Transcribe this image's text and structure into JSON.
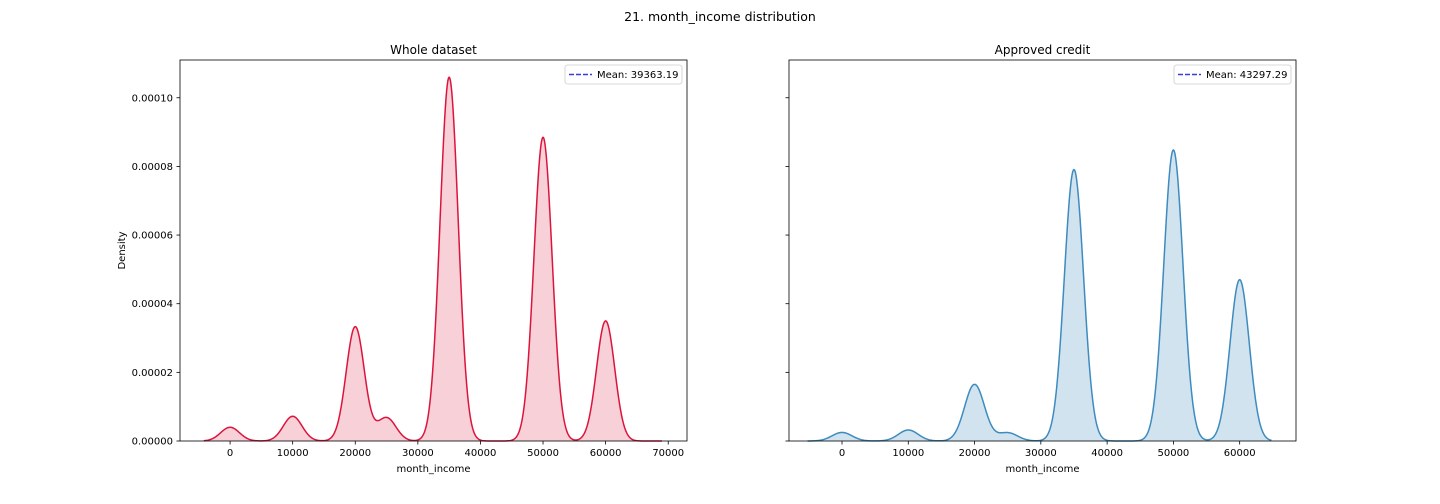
{
  "figure": {
    "suptitle": "21. month_income distribution"
  },
  "chart_data": [
    {
      "type": "area",
      "title": "Whole dataset",
      "xlabel": "month_income",
      "ylabel": "Density",
      "xlim": [
        -8000,
        73000
      ],
      "ylim": [
        0,
        0.000111
      ],
      "xticks": [
        0,
        10000,
        20000,
        30000,
        40000,
        50000,
        60000,
        70000
      ],
      "yticks": [
        0,
        2e-05,
        4e-05,
        6e-05,
        8e-05,
        0.0001
      ],
      "ytick_labels": [
        "0.00000",
        "0.00002",
        "0.00004",
        "0.00006",
        "0.00008",
        "0.00010"
      ],
      "grid": false,
      "line_color": "#dc143c",
      "fill_color": "#f7d0d8",
      "kde_range": [
        -4200,
        69000
      ],
      "components": [
        {
          "mu": 0,
          "sigma": 1500,
          "peak": 4e-06
        },
        {
          "mu": 10000,
          "sigma": 1500,
          "peak": 7.2e-06
        },
        {
          "mu": 20000,
          "sigma": 1450,
          "peak": 3.33e-05
        },
        {
          "mu": 25000,
          "sigma": 1500,
          "peak": 6.8e-06
        },
        {
          "mu": 35000,
          "sigma": 1450,
          "peak": 0.000106
        },
        {
          "mu": 50000,
          "sigma": 1450,
          "peak": 8.85e-05
        },
        {
          "mu": 60000,
          "sigma": 1450,
          "peak": 3.5e-05
        }
      ],
      "legend": {
        "label": "Mean: 39363.19",
        "line_color": "#3b3bdb",
        "position": "upper right"
      }
    },
    {
      "type": "area",
      "title": "Approved credit",
      "xlabel": "month_income",
      "ylabel": "",
      "xlim": [
        -8000,
        68500
      ],
      "ylim": [
        0,
        0.000111
      ],
      "xticks": [
        0,
        10000,
        20000,
        30000,
        40000,
        50000,
        60000
      ],
      "yticks": [
        0,
        2e-05,
        4e-05,
        6e-05,
        8e-05,
        0.0001
      ],
      "ytick_labels": [],
      "grid": false,
      "line_color": "#3d8bbf",
      "fill_color": "#d1e3ef",
      "kde_range": [
        -5200,
        64800
      ],
      "components": [
        {
          "mu": 0,
          "sigma": 1500,
          "peak": 2.5e-06
        },
        {
          "mu": 10000,
          "sigma": 1500,
          "peak": 3.2e-06
        },
        {
          "mu": 20000,
          "sigma": 1500,
          "peak": 1.65e-05
        },
        {
          "mu": 25000,
          "sigma": 1500,
          "peak": 2.4e-06
        },
        {
          "mu": 35000,
          "sigma": 1450,
          "peak": 7.91e-05
        },
        {
          "mu": 50000,
          "sigma": 1450,
          "peak": 8.48e-05
        },
        {
          "mu": 60000,
          "sigma": 1450,
          "peak": 4.7e-05
        }
      ],
      "legend": {
        "label": "Mean: 43297.29",
        "line_color": "#3b3bdb",
        "position": "upper right"
      }
    }
  ]
}
